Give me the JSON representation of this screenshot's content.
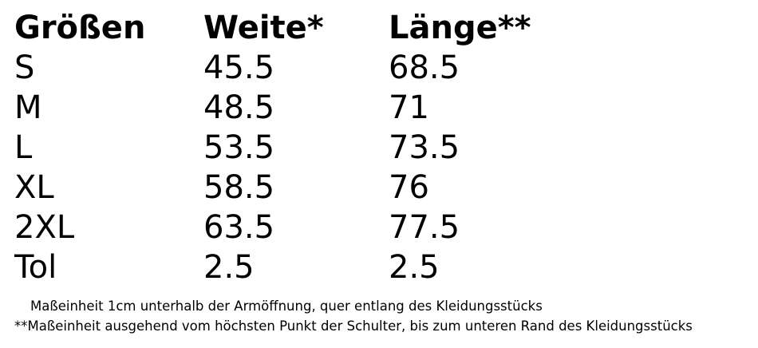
{
  "table": {
    "header": [
      "Größen",
      "Weite*",
      "Länge**"
    ],
    "rows": [
      [
        "S",
        45.5,
        68.5
      ],
      [
        "M",
        48.5,
        71
      ],
      [
        "L",
        53.5,
        73.5
      ],
      [
        "XL",
        58.5,
        76
      ],
      [
        "2XL",
        63.5,
        77.5
      ],
      [
        "Tol",
        2.5,
        2.5
      ]
    ]
  },
  "notes": [
    "Maßeinheit 1cm unterhalb der Armöffnung, quer entlang des Kleidungsstücks",
    "**Maßeinheit ausgehend vom höchsten Punkt der Schulter, bis zum unteren Rand des Kleidungsstücks"
  ]
}
